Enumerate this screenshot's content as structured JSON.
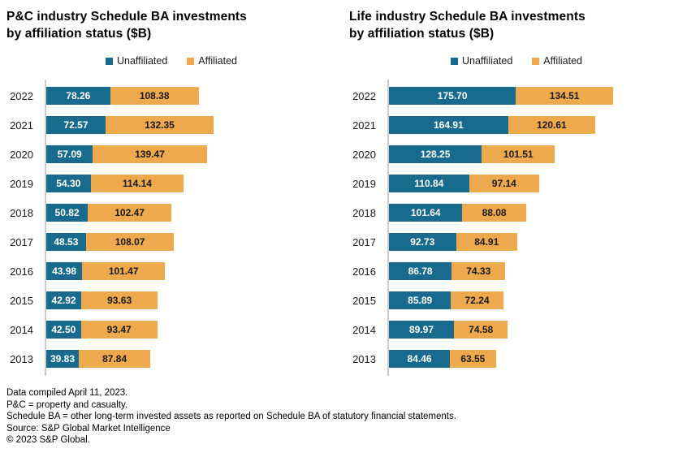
{
  "colors": {
    "unaffiliated": "#186B8C",
    "affiliated": "#EEA84E",
    "axis_line": "#cccccc",
    "label_on_teal": "#ffffff",
    "label_on_orange": "#1a1a1a",
    "background": "#ffffff"
  },
  "chart_data": [
    {
      "type": "bar",
      "orientation": "horizontal",
      "stacked": true,
      "title": "P&C industry Schedule BA investments by affiliation status ($B)",
      "title_lines": [
        "P&C industry Schedule BA investments",
        "by affiliation status ($B)"
      ],
      "categories": [
        "2022",
        "2021",
        "2020",
        "2019",
        "2018",
        "2017",
        "2016",
        "2015",
        "2014",
        "2013"
      ],
      "series": [
        {
          "name": "Unaffiliated",
          "color": "#186B8C",
          "values": [
            78.26,
            72.57,
            57.09,
            54.3,
            50.82,
            48.53,
            43.98,
            42.92,
            42.5,
            39.83
          ]
        },
        {
          "name": "Affiliated",
          "color": "#EEA84E",
          "values": [
            108.38,
            132.35,
            139.47,
            114.14,
            102.47,
            108.07,
            101.47,
            93.63,
            93.47,
            87.84
          ]
        }
      ],
      "legend_position": "top",
      "grid": false,
      "data_labels": true,
      "value_unit": "$B"
    },
    {
      "type": "bar",
      "orientation": "horizontal",
      "stacked": true,
      "title": "Life industry Schedule BA investments by affiliation status ($B)",
      "title_lines": [
        "Life industry Schedule BA investments",
        "by affiliation status ($B)"
      ],
      "categories": [
        "2022",
        "2021",
        "2020",
        "2019",
        "2018",
        "2017",
        "2016",
        "2015",
        "2014",
        "2013"
      ],
      "series": [
        {
          "name": "Unaffiliated",
          "color": "#186B8C",
          "values": [
            175.7,
            164.91,
            128.25,
            110.84,
            101.64,
            92.73,
            86.78,
            85.89,
            89.97,
            84.46
          ]
        },
        {
          "name": "Affiliated",
          "color": "#EEA84E",
          "values": [
            134.51,
            120.61,
            101.51,
            97.14,
            88.08,
            84.91,
            74.33,
            72.24,
            74.58,
            63.55
          ]
        }
      ],
      "legend_position": "top",
      "grid": false,
      "data_labels": true,
      "value_unit": "$B"
    }
  ],
  "footer": {
    "lines": [
      "Data compiled April 11, 2023.",
      "P&C = property and casualty.",
      "Schedule BA = other long-term invested assets as reported on Schedule BA of statutory financial statements.",
      "Source: S&P Global Market Intelligence",
      "© 2023 S&P Global."
    ]
  }
}
